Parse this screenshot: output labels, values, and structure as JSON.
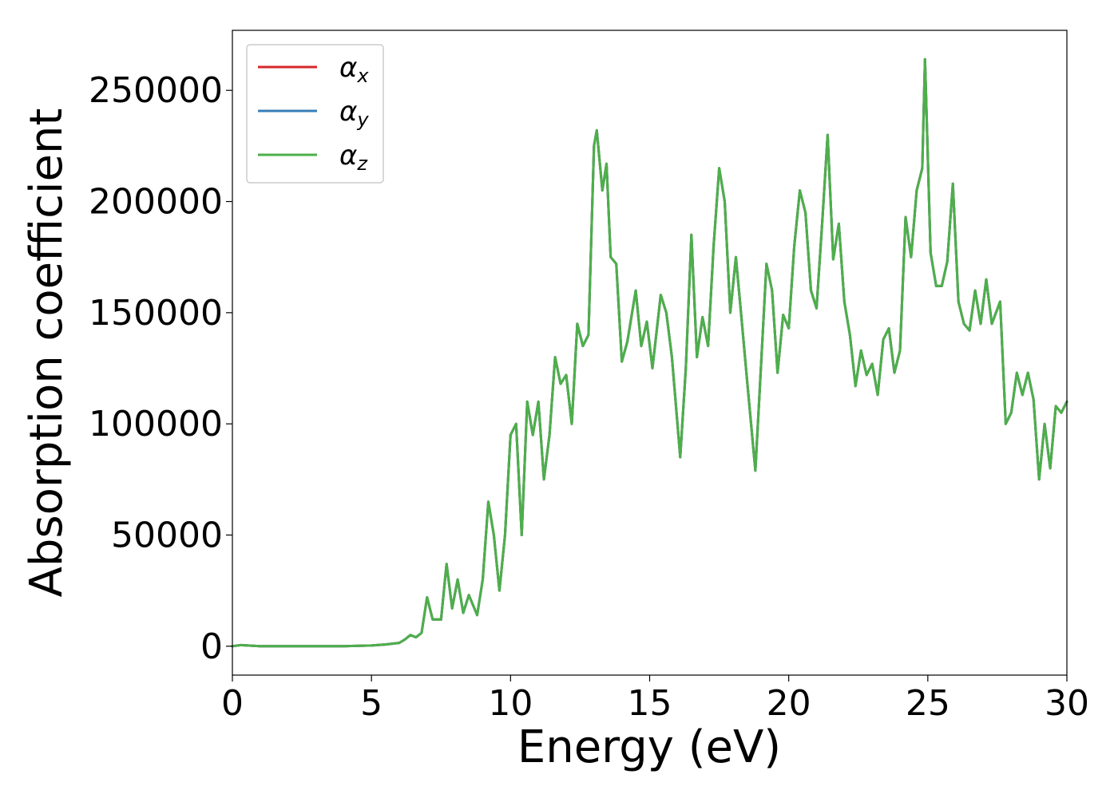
{
  "chart_data": {
    "type": "line",
    "title": "",
    "xlabel": "Energy (eV)",
    "ylabel": "Absorption coefficient",
    "xlim": [
      0,
      30
    ],
    "ylim": [
      -13000,
      277000
    ],
    "xticks": [
      0,
      5,
      10,
      15,
      20,
      25,
      30
    ],
    "yticks": [
      0,
      50000,
      100000,
      150000,
      200000,
      250000
    ],
    "grid": false,
    "legend_position": "top-left",
    "series": [
      {
        "name": "α_x",
        "name_base": "α",
        "name_sub": "x",
        "color": "#d62728",
        "x": [
          0,
          0.3,
          1,
          2,
          3,
          4,
          5,
          5.5,
          6,
          6.2,
          6.4,
          6.6,
          6.8,
          7.0,
          7.2,
          7.5,
          7.7,
          7.9,
          8.1,
          8.3,
          8.5,
          8.6,
          8.8,
          9.0,
          9.2,
          9.4,
          9.6,
          9.8,
          10.0,
          10.2,
          10.4,
          10.6,
          10.8,
          11.0,
          11.2,
          11.4,
          11.6,
          11.8,
          12.0,
          12.2,
          12.4,
          12.6,
          12.8,
          13.0,
          13.1,
          13.3,
          13.45,
          13.6,
          13.8,
          14.0,
          14.2,
          14.5,
          14.7,
          14.9,
          15.1,
          15.4,
          15.6,
          15.8,
          16.1,
          16.3,
          16.5,
          16.7,
          16.9,
          17.1,
          17.3,
          17.5,
          17.7,
          17.9,
          18.1,
          18.3,
          18.5,
          18.8,
          19.0,
          19.2,
          19.4,
          19.6,
          19.8,
          20.0,
          20.2,
          20.4,
          20.6,
          20.8,
          21.0,
          21.2,
          21.4,
          21.6,
          21.8,
          22.0,
          22.2,
          22.4,
          22.6,
          22.8,
          23.0,
          23.2,
          23.4,
          23.6,
          23.8,
          24.0,
          24.2,
          24.4,
          24.6,
          24.8,
          24.9,
          25.1,
          25.3,
          25.5,
          25.7,
          25.9,
          26.1,
          26.3,
          26.5,
          26.7,
          26.9,
          27.1,
          27.3,
          27.6,
          27.8,
          28.0,
          28.2,
          28.4,
          28.6,
          28.8,
          29.0,
          29.2,
          29.4,
          29.6,
          29.8,
          30.0
        ],
        "y": [
          0,
          500,
          0,
          0,
          0,
          0,
          300,
          800,
          1500,
          3000,
          5000,
          4000,
          6000,
          22000,
          12000,
          12000,
          37000,
          17000,
          30000,
          15000,
          23000,
          20000,
          14000,
          30000,
          65000,
          50000,
          25000,
          50000,
          95000,
          100000,
          50000,
          110000,
          95000,
          110000,
          75000,
          95000,
          130000,
          118000,
          122000,
          100000,
          145000,
          135000,
          140000,
          225000,
          232000,
          205000,
          217000,
          175000,
          172000,
          128000,
          137000,
          160000,
          135000,
          146000,
          125000,
          158000,
          150000,
          130000,
          85000,
          125000,
          185000,
          130000,
          148000,
          135000,
          180000,
          215000,
          200000,
          150000,
          175000,
          148000,
          120000,
          79000,
          125000,
          172000,
          160000,
          123000,
          149000,
          143000,
          180000,
          205000,
          195000,
          160000,
          152000,
          190000,
          230000,
          174000,
          190000,
          155000,
          140000,
          117000,
          133000,
          122000,
          127000,
          113000,
          138000,
          143000,
          123000,
          133000,
          193000,
          175000,
          205000,
          215000,
          264000,
          177000,
          162000,
          162000,
          173000,
          208000,
          155000,
          145000,
          142000,
          160000,
          145000,
          165000,
          145000,
          155000,
          100000,
          105000,
          123000,
          113000,
          123000,
          111000,
          75000,
          100000,
          80000,
          108000,
          105000,
          110000
        ]
      },
      {
        "name": "α_y",
        "name_base": "α",
        "name_sub": "y",
        "color": "#377eb8",
        "x": [
          0,
          0.3,
          1,
          2,
          3,
          4,
          5,
          5.5,
          6,
          6.2,
          6.4,
          6.6,
          6.8,
          7.0,
          7.2,
          7.5,
          7.7,
          7.9,
          8.1,
          8.3,
          8.5,
          8.6,
          8.8,
          9.0,
          9.2,
          9.4,
          9.6,
          9.8,
          10.0,
          10.2,
          10.4,
          10.6,
          10.8,
          11.0,
          11.2,
          11.4,
          11.6,
          11.8,
          12.0,
          12.2,
          12.4,
          12.6,
          12.8,
          13.0,
          13.1,
          13.3,
          13.45,
          13.6,
          13.8,
          14.0,
          14.2,
          14.5,
          14.7,
          14.9,
          15.1,
          15.4,
          15.6,
          15.8,
          16.1,
          16.3,
          16.5,
          16.7,
          16.9,
          17.1,
          17.3,
          17.5,
          17.7,
          17.9,
          18.1,
          18.3,
          18.5,
          18.8,
          19.0,
          19.2,
          19.4,
          19.6,
          19.8,
          20.0,
          20.2,
          20.4,
          20.6,
          20.8,
          21.0,
          21.2,
          21.4,
          21.6,
          21.8,
          22.0,
          22.2,
          22.4,
          22.6,
          22.8,
          23.0,
          23.2,
          23.4,
          23.6,
          23.8,
          24.0,
          24.2,
          24.4,
          24.6,
          24.8,
          24.9,
          25.1,
          25.3,
          25.5,
          25.7,
          25.9,
          26.1,
          26.3,
          26.5,
          26.7,
          26.9,
          27.1,
          27.3,
          27.6,
          27.8,
          28.0,
          28.2,
          28.4,
          28.6,
          28.8,
          29.0,
          29.2,
          29.4,
          29.6,
          29.8,
          30.0
        ],
        "y": [
          0,
          500,
          0,
          0,
          0,
          0,
          300,
          800,
          1500,
          3000,
          5000,
          4000,
          6000,
          22000,
          12000,
          12000,
          37000,
          17000,
          30000,
          15000,
          23000,
          20000,
          14000,
          30000,
          65000,
          50000,
          25000,
          50000,
          95000,
          100000,
          50000,
          110000,
          95000,
          110000,
          75000,
          95000,
          130000,
          118000,
          122000,
          100000,
          145000,
          135000,
          140000,
          225000,
          232000,
          205000,
          217000,
          175000,
          172000,
          128000,
          137000,
          160000,
          135000,
          146000,
          125000,
          158000,
          150000,
          130000,
          85000,
          125000,
          185000,
          130000,
          148000,
          135000,
          180000,
          215000,
          200000,
          150000,
          175000,
          148000,
          120000,
          79000,
          125000,
          172000,
          160000,
          123000,
          149000,
          143000,
          180000,
          205000,
          195000,
          160000,
          152000,
          190000,
          230000,
          174000,
          190000,
          155000,
          140000,
          117000,
          133000,
          122000,
          127000,
          113000,
          138000,
          143000,
          123000,
          133000,
          193000,
          175000,
          205000,
          215000,
          264000,
          177000,
          162000,
          162000,
          173000,
          208000,
          155000,
          145000,
          142000,
          160000,
          145000,
          165000,
          145000,
          155000,
          100000,
          105000,
          123000,
          113000,
          123000,
          111000,
          75000,
          100000,
          80000,
          108000,
          105000,
          110000
        ]
      },
      {
        "name": "α_z",
        "name_base": "α",
        "name_sub": "z",
        "color": "#4daf4a",
        "x": [
          0,
          0.3,
          1,
          2,
          3,
          4,
          5,
          5.5,
          6,
          6.2,
          6.4,
          6.6,
          6.8,
          7.0,
          7.2,
          7.5,
          7.7,
          7.9,
          8.1,
          8.3,
          8.5,
          8.6,
          8.8,
          9.0,
          9.2,
          9.4,
          9.6,
          9.8,
          10.0,
          10.2,
          10.4,
          10.6,
          10.8,
          11.0,
          11.2,
          11.4,
          11.6,
          11.8,
          12.0,
          12.2,
          12.4,
          12.6,
          12.8,
          13.0,
          13.1,
          13.3,
          13.45,
          13.6,
          13.8,
          14.0,
          14.2,
          14.5,
          14.7,
          14.9,
          15.1,
          15.4,
          15.6,
          15.8,
          16.1,
          16.3,
          16.5,
          16.7,
          16.9,
          17.1,
          17.3,
          17.5,
          17.7,
          17.9,
          18.1,
          18.3,
          18.5,
          18.8,
          19.0,
          19.2,
          19.4,
          19.6,
          19.8,
          20.0,
          20.2,
          20.4,
          20.6,
          20.8,
          21.0,
          21.2,
          21.4,
          21.6,
          21.8,
          22.0,
          22.2,
          22.4,
          22.6,
          22.8,
          23.0,
          23.2,
          23.4,
          23.6,
          23.8,
          24.0,
          24.2,
          24.4,
          24.6,
          24.8,
          24.9,
          25.1,
          25.3,
          25.5,
          25.7,
          25.9,
          26.1,
          26.3,
          26.5,
          26.7,
          26.9,
          27.1,
          27.3,
          27.6,
          27.8,
          28.0,
          28.2,
          28.4,
          28.6,
          28.8,
          29.0,
          29.2,
          29.4,
          29.6,
          29.8,
          30.0
        ],
        "y": [
          0,
          500,
          0,
          0,
          0,
          0,
          300,
          800,
          1500,
          3000,
          5000,
          4000,
          6000,
          22000,
          12000,
          12000,
          37000,
          17000,
          30000,
          15000,
          23000,
          20000,
          14000,
          30000,
          65000,
          50000,
          25000,
          50000,
          95000,
          100000,
          50000,
          110000,
          95000,
          110000,
          75000,
          95000,
          130000,
          118000,
          122000,
          100000,
          145000,
          135000,
          140000,
          225000,
          232000,
          205000,
          217000,
          175000,
          172000,
          128000,
          137000,
          160000,
          135000,
          146000,
          125000,
          158000,
          150000,
          130000,
          85000,
          125000,
          185000,
          130000,
          148000,
          135000,
          180000,
          215000,
          200000,
          150000,
          175000,
          148000,
          120000,
          79000,
          125000,
          172000,
          160000,
          123000,
          149000,
          143000,
          180000,
          205000,
          195000,
          160000,
          152000,
          190000,
          230000,
          174000,
          190000,
          155000,
          140000,
          117000,
          133000,
          122000,
          127000,
          113000,
          138000,
          143000,
          123000,
          133000,
          193000,
          175000,
          205000,
          215000,
          264000,
          177000,
          162000,
          162000,
          173000,
          208000,
          155000,
          145000,
          142000,
          160000,
          145000,
          165000,
          145000,
          155000,
          100000,
          105000,
          123000,
          113000,
          123000,
          111000,
          75000,
          100000,
          80000,
          108000,
          105000,
          110000
        ]
      }
    ]
  }
}
